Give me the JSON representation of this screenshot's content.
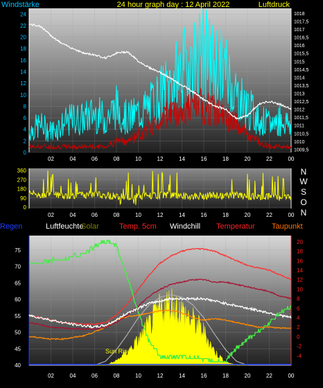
{
  "top_panel": {
    "title": "24 hour graph day : 12 April 2022",
    "left_label": "Windstärke",
    "right_label": "Luftdruck",
    "title_color": "#ffff00",
    "label_color": "#ffff00"
  },
  "mid_panel": {
    "compass": [
      "N",
      "W",
      "S",
      "O",
      "N"
    ]
  },
  "legend": [
    {
      "label": "Regen",
      "color": "#1e3cff"
    },
    {
      "label": "Luftfeuchte",
      "color": "#ffffff"
    },
    {
      "label": "Solar",
      "color": "#808000"
    },
    {
      "label": "Temp. 5cm",
      "color": "#ff2020"
    },
    {
      "label": "Windchill",
      "color": "#ffffff"
    },
    {
      "label": "Temperatur",
      "color": "#ff2020"
    },
    {
      "label": "Taupunkt",
      "color": "#ff7000"
    }
  ],
  "bottom_panel": {
    "annotation": "Sun Rise"
  },
  "chart_data": [
    {
      "type": "line",
      "name": "wind-pressure",
      "x_ticks": [
        "02",
        "04",
        "06",
        "08",
        "10",
        "12",
        "14",
        "16",
        "18",
        "20",
        "22",
        "00"
      ],
      "y_left_ticks": [
        "0",
        "2",
        "4",
        "6",
        "8",
        "10",
        "12",
        "14",
        "16",
        "18",
        "20",
        "22",
        "24"
      ],
      "y_left_range": [
        0,
        25
      ],
      "y_right_ticks": [
        "1009,5",
        "1010",
        "1010,5",
        "1011",
        "1011,5",
        "1012",
        "1012,5",
        "1013",
        "1013,5",
        "1014",
        "1014,5",
        "1015",
        "1015,5",
        "1016",
        "1016,5",
        "1017",
        "1017,5",
        "1018"
      ],
      "y_right_range": [
        1009.3,
        1018.3
      ],
      "colors": {
        "gust": "#00ffff",
        "wind": "#cc0000",
        "pressure": "#ffffff"
      },
      "x": [
        0,
        1,
        2,
        3,
        4,
        5,
        6,
        7,
        8,
        9,
        10,
        11,
        12,
        13,
        14,
        15,
        16,
        17,
        18,
        19,
        20,
        21,
        22,
        23,
        24
      ],
      "series": [
        {
          "key": "gust",
          "values": [
            4,
            5,
            4,
            5,
            6,
            6,
            7,
            6,
            8,
            6,
            7,
            8,
            10,
            12,
            14,
            16,
            17,
            15,
            14,
            10,
            8,
            6,
            5,
            6,
            5
          ]
        },
        {
          "key": "wind",
          "values": [
            1,
            1,
            1,
            1,
            1,
            1,
            1,
            1,
            2,
            2,
            3,
            4,
            6,
            7,
            7,
            8,
            8,
            7,
            6,
            5,
            3,
            2,
            1,
            1,
            1
          ]
        },
        {
          "key": "pressure",
          "values": [
            1017.3,
            1017.2,
            1016.6,
            1016.1,
            1015.8,
            1015.5,
            1015.4,
            1015.2,
            1015.5,
            1015.6,
            1015.0,
            1014.6,
            1014.3,
            1013.9,
            1013.5,
            1013.1,
            1012.6,
            1012.2,
            1012.0,
            1011.4,
            1011.6,
            1012.3,
            1012.5,
            1012.3,
            1012.0
          ]
        }
      ]
    },
    {
      "type": "line",
      "name": "wind-direction",
      "x_ticks": [
        "02",
        "04",
        "06",
        "08",
        "10",
        "12",
        "14",
        "16",
        "18",
        "20",
        "22",
        "00"
      ],
      "y_ticks": [
        "0",
        "90",
        "180",
        "270",
        "360"
      ],
      "y_range": [
        0,
        360
      ],
      "color": "#ffff00",
      "x": [
        0,
        1,
        2,
        3,
        4,
        5,
        6,
        7,
        8,
        9,
        10,
        11,
        12,
        13,
        14,
        15,
        16,
        17,
        18,
        19,
        20,
        21,
        22,
        23,
        24
      ],
      "values": [
        140,
        120,
        130,
        110,
        115,
        120,
        125,
        115,
        110,
        100,
        105,
        110,
        115,
        120,
        110,
        105,
        110,
        115,
        110,
        120,
        105,
        100,
        110,
        95,
        110
      ]
    },
    {
      "type": "line",
      "name": "humidity-temperature",
      "x_ticks": [
        "02",
        "04",
        "06",
        "08",
        "10",
        "12",
        "14",
        "16",
        "18",
        "20",
        "22",
        "00"
      ],
      "y_left_ticks": [
        "40",
        "45",
        "50",
        "55",
        "60",
        "65",
        "70",
        "75"
      ],
      "y_left_range": [
        40,
        79
      ],
      "y_right_ticks": [
        "-4",
        "-2",
        "0",
        "2",
        "4",
        "6",
        "8",
        "10",
        "12",
        "14",
        "16",
        "18",
        "20"
      ],
      "y_right_range": [
        -6,
        21
      ],
      "x": [
        0,
        1,
        2,
        3,
        4,
        5,
        6,
        7,
        8,
        9,
        10,
        11,
        12,
        13,
        14,
        15,
        16,
        17,
        18,
        19,
        20,
        21,
        22,
        23,
        24
      ],
      "series": [
        {
          "key": "humidity",
          "color": "#44ee44",
          "axis": "left",
          "values": [
            71,
            71,
            72,
            72,
            73,
            74,
            76,
            78,
            76,
            67,
            56,
            47,
            43,
            42,
            43,
            42,
            42,
            41,
            41,
            45,
            48,
            50,
            53,
            56,
            58
          ]
        },
        {
          "key": "temperature",
          "color": "#ff3030",
          "axis": "right",
          "values": [
            4.5,
            4.0,
            3.5,
            3.0,
            2.8,
            2.6,
            2.6,
            3.0,
            4.5,
            7.0,
            10.0,
            13.0,
            15.5,
            17.0,
            18.0,
            18.5,
            18.5,
            18.0,
            17.0,
            16.0,
            15.0,
            14.5,
            14.0,
            13.0,
            12.0
          ]
        },
        {
          "key": "temp5cm",
          "color": "#aa1133",
          "axis": "right",
          "values": [
            3.0,
            2.5,
            2.0,
            1.8,
            1.7,
            1.6,
            1.6,
            2.0,
            3.0,
            4.5,
            6.5,
            8.5,
            10.0,
            11.0,
            11.5,
            12.0,
            12.0,
            11.5,
            11.5,
            11.0,
            10.5,
            10.0,
            9.5,
            8.5,
            8.0
          ]
        },
        {
          "key": "windchill",
          "color": "#ffffff",
          "axis": "right",
          "values": [
            4.5,
            4.0,
            3.5,
            3.0,
            2.6,
            2.3,
            2.0,
            2.4,
            3.5,
            5.0,
            6.0,
            7.0,
            7.5,
            8.0,
            8.0,
            8.0,
            8.0,
            7.5,
            7.0,
            6.5,
            6.0,
            5.5,
            5.0,
            4.5,
            4.0
          ]
        },
        {
          "key": "dewpoint",
          "color": "#ff8800",
          "axis": "right",
          "values": [
            0.0,
            -0.2,
            -0.5,
            -0.5,
            -0.2,
            0.2,
            1.0,
            2.0,
            3.5,
            4.2,
            4.5,
            5.0,
            5.5,
            5.5,
            5.0,
            4.0,
            3.5,
            3.8,
            3.5,
            3.0,
            2.5,
            2.0,
            2.0,
            1.8,
            1.8
          ]
        },
        {
          "key": "solar",
          "color": "#ffff00",
          "axis": "solar",
          "values": [
            0,
            0,
            0,
            0,
            0,
            0,
            0,
            0,
            4,
            12,
            22,
            36,
            50,
            56,
            48,
            40,
            30,
            12,
            3,
            0,
            0,
            0,
            0,
            0,
            0
          ]
        },
        {
          "key": "solar_max",
          "color": "#b0b0b0",
          "axis": "solar",
          "values": [
            0,
            0,
            0,
            0,
            0,
            0,
            0,
            3,
            12,
            24,
            37,
            47,
            53,
            55,
            53,
            47,
            37,
            24,
            12,
            3,
            0,
            0,
            0,
            0,
            0
          ]
        }
      ],
      "solar_range": [
        0,
        100
      ]
    }
  ]
}
